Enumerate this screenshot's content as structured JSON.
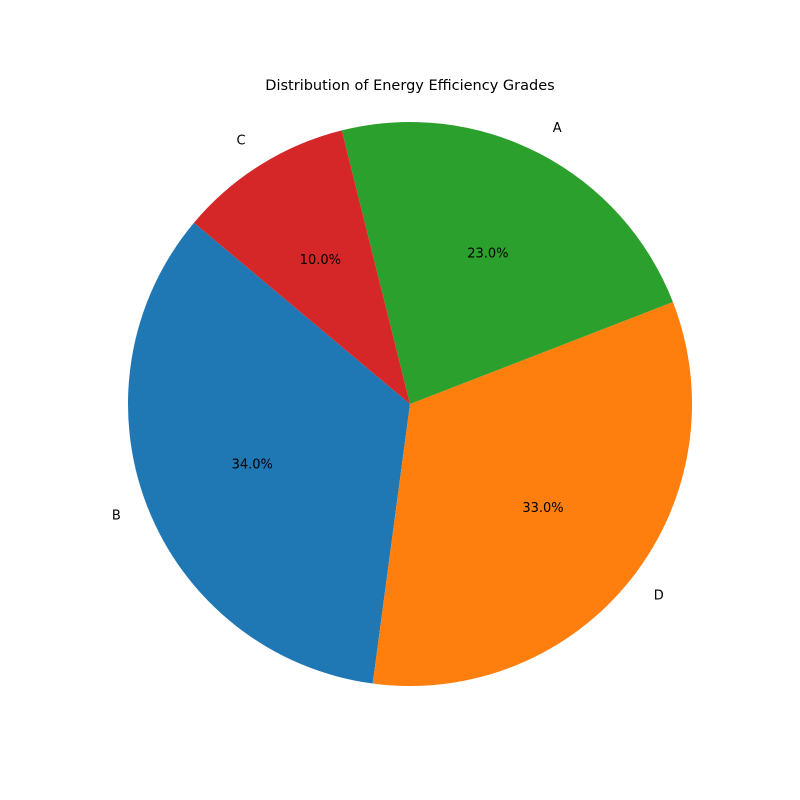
{
  "chart_data": {
    "type": "pie",
    "title": "Distribution of Energy Efficiency Grades",
    "categories": [
      "B",
      "D",
      "A",
      "C"
    ],
    "values": [
      34.0,
      33.0,
      23.0,
      10.0
    ],
    "percent_labels": [
      "34.0%",
      "33.0%",
      "23.0%",
      "10.0%"
    ],
    "colors": [
      "#1f77b4",
      "#ff7f0e",
      "#2ca02c",
      "#d62728"
    ],
    "start_angle_deg": 140,
    "direction": "counterclockwise"
  }
}
